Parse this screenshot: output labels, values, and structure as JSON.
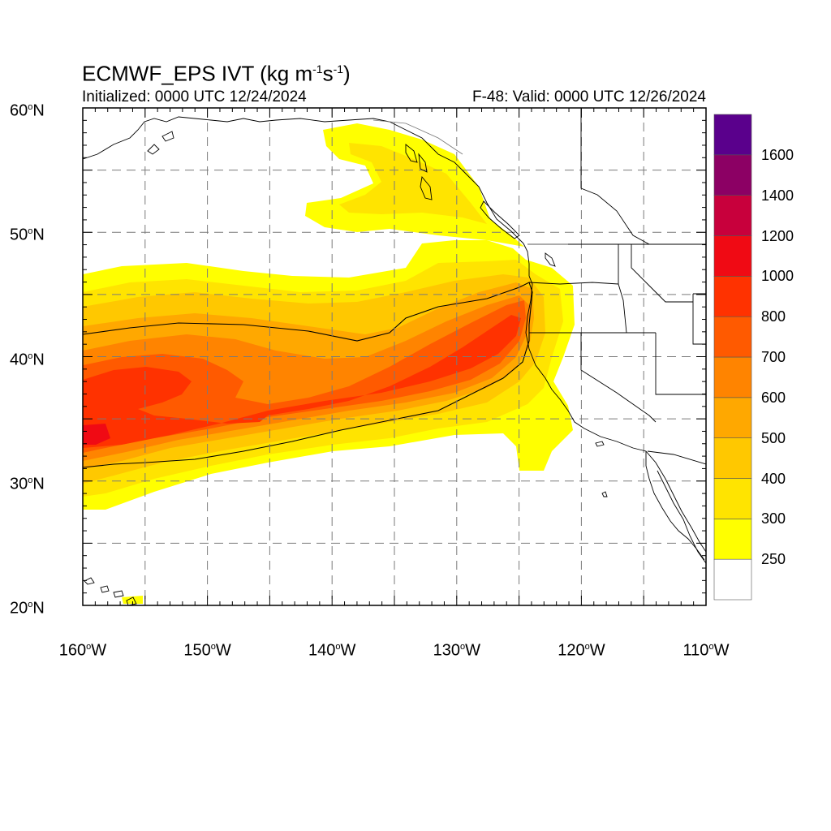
{
  "header": {
    "title_main": "ECMWF_EPS IVT (kg m",
    "title_exp1": "-1",
    "title_mid": "s",
    "title_exp2": "-1",
    "title_end": ")",
    "initialized": "Initialized: 0000 UTC 12/24/2024",
    "valid": "F-48: Valid: 0000 UTC 12/26/2024"
  },
  "axes": {
    "lat_labels": [
      {
        "value": "60",
        "unit": "N"
      },
      {
        "value": "50",
        "unit": "N"
      },
      {
        "value": "40",
        "unit": "N"
      },
      {
        "value": "30",
        "unit": "N"
      },
      {
        "value": "20",
        "unit": "N"
      }
    ],
    "lon_labels": [
      {
        "value": "160",
        "unit": "W"
      },
      {
        "value": "150",
        "unit": "W"
      },
      {
        "value": "140",
        "unit": "W"
      },
      {
        "value": "130",
        "unit": "W"
      },
      {
        "value": "120",
        "unit": "W"
      },
      {
        "value": "110",
        "unit": "W"
      }
    ],
    "lon_range": [
      -160,
      -110
    ],
    "lat_range": [
      20,
      60
    ]
  },
  "colorbar": {
    "labels": [
      "1600",
      "1400",
      "1200",
      "1000",
      "800",
      "700",
      "600",
      "500",
      "400",
      "300",
      "250"
    ],
    "colors": [
      "#ffffff",
      "#ffff00",
      "#ffe400",
      "#ffc800",
      "#ffa800",
      "#ff8400",
      "#ff5a00",
      "#ff3200",
      "#f00a14",
      "#c8003c",
      "#8c0064",
      "#5a008c"
    ]
  },
  "colors": {
    "land_line": "#000000",
    "grid": "#7a7a7a"
  }
}
